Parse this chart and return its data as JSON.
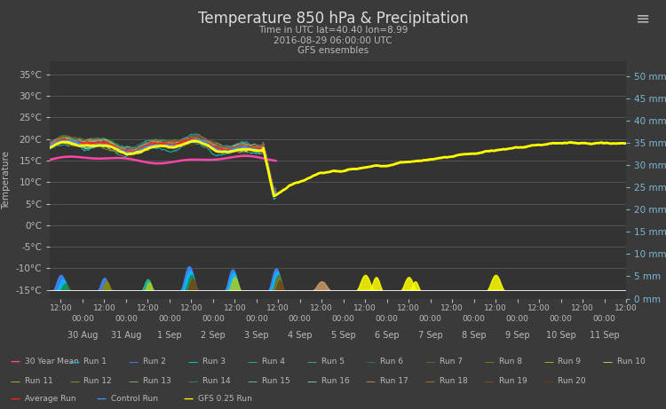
{
  "title": "Temperature 850 hPa & Precipitation",
  "subtitle1": "Time in UTC lat=40.40 lon=8.99",
  "subtitle2": "2016-08-29 06:00:00 UTC",
  "subtitle3": "GFS ensembles",
  "bg_color": "#3a3a3a",
  "plot_bg_color": "#333333",
  "title_color": "#dddddd",
  "grid_color": "#606060",
  "text_color": "#bbbbbb",
  "right_axis_color": "#7bb8d4",
  "ylim_left": [
    -17,
    38
  ],
  "ylim_right": [
    0,
    53.33
  ],
  "yticks_left": [
    -15,
    -10,
    -5,
    0,
    5,
    10,
    15,
    20,
    25,
    30,
    35
  ],
  "yticks_right": [
    0,
    5,
    10,
    15,
    20,
    25,
    30,
    35,
    40,
    45,
    50
  ],
  "ytick_right_labels": [
    "0 mm",
    "5 mm",
    "10 mm",
    "15 mm",
    "20 mm",
    "25 mm",
    "30 mm",
    "35 mm",
    "40 mm",
    "45 mm",
    "50 mm"
  ],
  "run_colors": [
    "#00bfff",
    "#4488ff",
    "#00e0e0",
    "#20c0a0",
    "#44bb66",
    "#228844",
    "#667722",
    "#888800",
    "#aacc22",
    "#ccee44",
    "#ccbb44",
    "#88aa22",
    "#99bb88",
    "#448866",
    "#77ccaa",
    "#88ddcc",
    "#cc9966",
    "#bb7733",
    "#994422",
    "#774411"
  ],
  "mean_color": "#ff44aa",
  "avg_color": "#ff2222",
  "ctrl_color": "#4488ff",
  "gfs_color": "#ffff00",
  "date_labels": [
    "30 Aug",
    "31 Aug",
    "1 Sep",
    "2 Sep",
    "3 Sep",
    "4 Sep",
    "5 Sep",
    "6 Sep",
    "7 Sep",
    "8 Sep",
    "9 Sep",
    "10 Sep",
    "11 Sep"
  ],
  "legend_rows": [
    [
      {
        "label": "30 Year Mean",
        "color": "#ff44aa",
        "lw": 2.0
      },
      {
        "label": "Run 1",
        "color": "#00bfff",
        "lw": 1.2
      },
      {
        "label": "Run 2",
        "color": "#4488ff",
        "lw": 1.2
      },
      {
        "label": "Run 3",
        "color": "#00e0e0",
        "lw": 1.2
      },
      {
        "label": "Run 4",
        "color": "#20c0a0",
        "lw": 1.2
      },
      {
        "label": "Run 5",
        "color": "#44bb66",
        "lw": 1.2
      },
      {
        "label": "Run 6",
        "color": "#228844",
        "lw": 1.2
      },
      {
        "label": "Run 7",
        "color": "#667722",
        "lw": 1.2
      },
      {
        "label": "Run 8",
        "color": "#888800",
        "lw": 1.2
      },
      {
        "label": "Run 9",
        "color": "#aacc22",
        "lw": 1.2
      },
      {
        "label": "Run 10",
        "color": "#ccee44",
        "lw": 1.2
      }
    ],
    [
      {
        "label": "Run 11",
        "color": "#ccbb44",
        "lw": 1.2
      },
      {
        "label": "Run 12",
        "color": "#88aa22",
        "lw": 1.2
      },
      {
        "label": "Run 13",
        "color": "#99bb88",
        "lw": 1.2
      },
      {
        "label": "Run 14",
        "color": "#448866",
        "lw": 1.2
      },
      {
        "label": "Run 15",
        "color": "#77ccaa",
        "lw": 1.2
      },
      {
        "label": "Run 16",
        "color": "#88ddcc",
        "lw": 1.2
      },
      {
        "label": "Run 17",
        "color": "#cc9966",
        "lw": 1.2
      },
      {
        "label": "Run 18",
        "color": "#bb7733",
        "lw": 1.2
      },
      {
        "label": "Run 19",
        "color": "#994422",
        "lw": 1.2
      },
      {
        "label": "Run 20",
        "color": "#774411",
        "lw": 1.2
      }
    ],
    [
      {
        "label": "Average Run",
        "color": "#ff2222",
        "lw": 2.0
      },
      {
        "label": "Control Run",
        "color": "#4488ff",
        "lw": 2.0
      },
      {
        "label": "GFS 0.25 Run",
        "color": "#ffff00",
        "lw": 2.5
      }
    ]
  ]
}
